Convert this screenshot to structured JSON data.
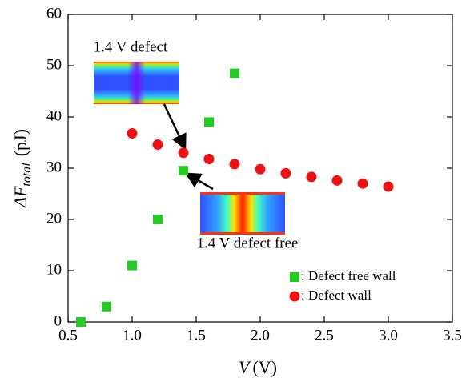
{
  "chart_data": {
    "type": "scatter",
    "xlabel": {
      "var": "V",
      "unit": "(V)"
    },
    "ylabel": {
      "main": "ΔF",
      "sub": "total",
      "unit": "(pJ)"
    },
    "xlim": [
      0.5,
      3.5
    ],
    "ylim": [
      0,
      60
    ],
    "xticks": [
      0.5,
      {
        "value": 1,
        "label": "1.0"
      },
      1.5,
      {
        "value": 2,
        "label": "2.0"
      },
      2.5,
      {
        "value": 3,
        "label": "3.0"
      },
      3.5
    ],
    "yticks": [
      0,
      10,
      20,
      30,
      40,
      50,
      60
    ],
    "series": [
      {
        "name": ": Defect free wall",
        "color": "#22cc22",
        "marker": "square",
        "x": [
          0.6,
          0.8,
          1.0,
          1.2,
          1.4,
          1.6,
          1.8
        ],
        "values": [
          0,
          3,
          11,
          20,
          29.5,
          39,
          48.5
        ]
      },
      {
        "name": ": Defect wall",
        "color": "#ee1111",
        "marker": "circle",
        "x": [
          1.0,
          1.2,
          1.4,
          1.6,
          1.8,
          2.0,
          2.2,
          2.4,
          2.6,
          2.8,
          3.0
        ],
        "values": [
          36.8,
          34.6,
          33,
          31.8,
          30.8,
          29.8,
          29,
          28.3,
          27.6,
          27,
          26.4
        ]
      }
    ],
    "annotations": [
      "1.4 V defect",
      "1.4 V defect free"
    ],
    "legend": "lower right"
  }
}
